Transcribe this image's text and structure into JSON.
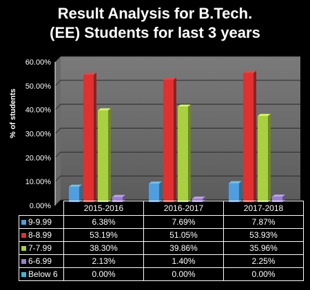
{
  "title_line1": "Result Analysis for B.Tech.",
  "title_line2": "(EE) Students for last 3 years",
  "chart_data": {
    "type": "bar",
    "title": "Result Analysis for B.Tech. (EE) Students for last 3 years",
    "xlabel": "",
    "ylabel": "% of students",
    "categories": [
      "2015-2016",
      "2016-2017",
      "2017-2018"
    ],
    "ylim": [
      0,
      60
    ],
    "yticks": [
      "0.00%",
      "10.00%",
      "20.00%",
      "30.00%",
      "40.00%",
      "50.00%",
      "60.00%"
    ],
    "series": [
      {
        "name": "9-9.99",
        "color": "#4f9fe0",
        "values": [
          6.38,
          7.69,
          7.87
        ],
        "labels": [
          "6.38%",
          "7.69%",
          "7.87%"
        ]
      },
      {
        "name": "8-8.99",
        "color": "#e03030",
        "values": [
          53.19,
          51.05,
          53.93
        ],
        "labels": [
          "53.19%",
          "51.05%",
          "53.93%"
        ]
      },
      {
        "name": "7-7.99",
        "color": "#a8d040",
        "values": [
          38.3,
          39.86,
          35.96
        ],
        "labels": [
          "38.30%",
          "39.86%",
          "35.96%"
        ]
      },
      {
        "name": "6-6.99",
        "color": "#9b7fd0",
        "values": [
          2.13,
          1.4,
          2.25
        ],
        "labels": [
          "2.13%",
          "1.40%",
          "2.25%"
        ]
      },
      {
        "name": "Below 6",
        "color": "#3cb8d8",
        "values": [
          0,
          0,
          0
        ],
        "labels": [
          "0.00%",
          "0.00%",
          "0.00%"
        ]
      }
    ],
    "grid": true,
    "legend": "table"
  }
}
